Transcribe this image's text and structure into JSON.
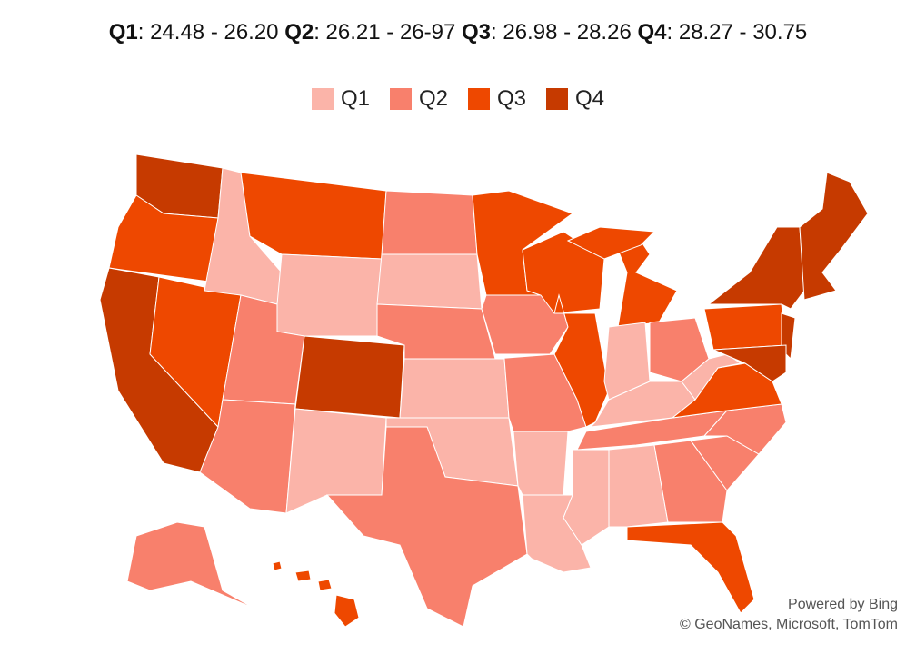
{
  "header": {
    "segments": [
      {
        "label": "Q1",
        "range": ": 24.48 - 26.20"
      },
      {
        "label": "Q2",
        "range": ": 26.21 - 26-97"
      },
      {
        "label": "Q3",
        "range": ": 26.98 - 28.26"
      },
      {
        "label": "Q4",
        "range": ": 28.27 - 30.75"
      }
    ]
  },
  "legend": [
    {
      "label": "Q1",
      "color": "#fbb4a9"
    },
    {
      "label": "Q2",
      "color": "#f8806c"
    },
    {
      "label": "Q3",
      "color": "#ee4800"
    },
    {
      "label": "Q4",
      "color": "#c63a00"
    }
  ],
  "attribution": {
    "powered": "Powered by Bing",
    "credits": "© GeoNames, Microsoft, TomTom"
  }
}
